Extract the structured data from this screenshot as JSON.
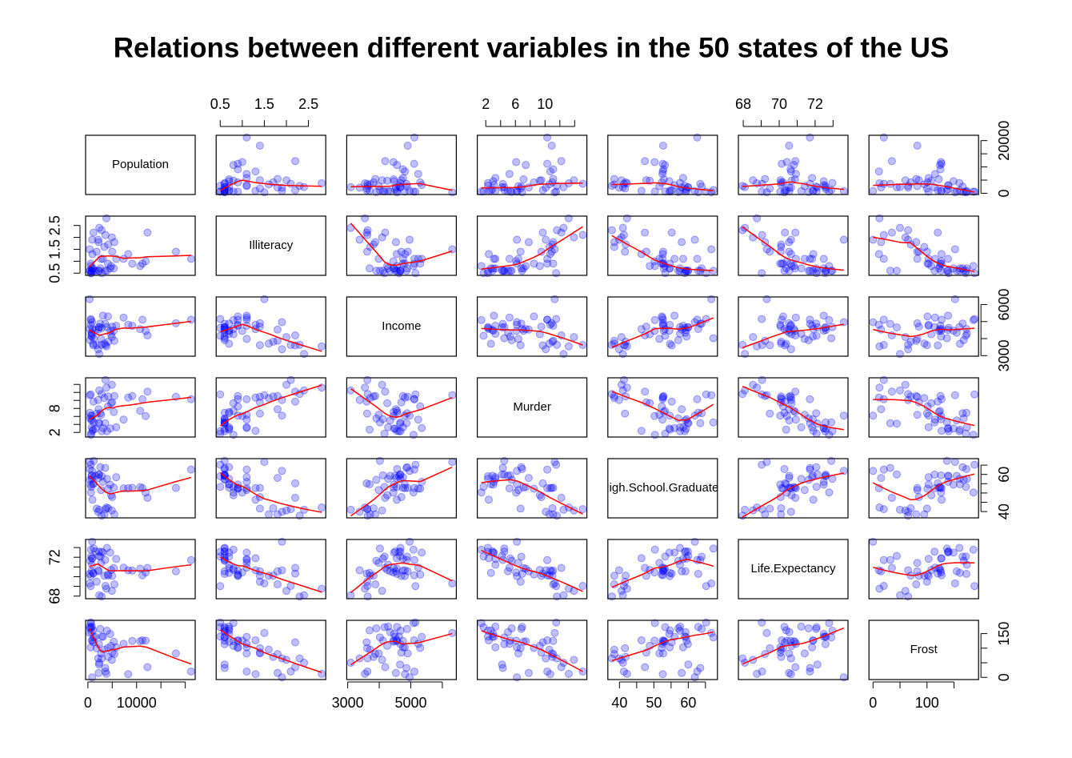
{
  "chart_data": {
    "type": "scatter_matrix",
    "title": "Relations between different variables in the 50 states of the US",
    "point_color": "#0000ff",
    "smoother": "lowess",
    "smoother_color": "#ff0000",
    "variables": [
      {
        "name": "Population",
        "values": [
          3615,
          365,
          2212,
          2110,
          21198,
          2541,
          3100,
          579,
          8277,
          4931,
          868,
          813,
          11197,
          5313,
          2861,
          2280,
          3387,
          3806,
          1058,
          4122,
          5814,
          9111,
          3921,
          2341,
          4767,
          746,
          1544,
          590,
          812,
          7333,
          1144,
          18076,
          5441,
          637,
          10735,
          2715,
          2284,
          11860,
          931,
          2816,
          681,
          4173,
          12237,
          1203,
          472,
          4981,
          3559,
          1799,
          4589,
          376
        ],
        "lim": [
          -468,
          22031
        ],
        "xticks": [
          0,
          {
            "value": 5000
          },
          10000,
          {
            "value": 15000
          },
          {
            "value": 20000
          }
        ],
        "yticks": [
          0,
          {
            "value": 5000
          },
          {
            "value": 10000
          },
          {
            "value": 15000
          },
          20000
        ]
      },
      {
        "name": "Illiteracy",
        "values": [
          2.1,
          1.5,
          1.8,
          1.9,
          1.1,
          0.7,
          1.1,
          0.9,
          1.3,
          2.0,
          1.9,
          0.6,
          0.9,
          0.7,
          0.5,
          0.6,
          1.6,
          2.8,
          0.7,
          0.9,
          1.1,
          0.9,
          0.6,
          2.4,
          0.8,
          0.6,
          0.6,
          0.5,
          0.7,
          1.1,
          2.2,
          1.4,
          1.8,
          0.8,
          0.8,
          1.1,
          0.6,
          1.0,
          1.3,
          2.3,
          0.5,
          1.7,
          2.2,
          0.6,
          0.6,
          1.4,
          0.6,
          1.4,
          0.7,
          0.6
        ],
        "lim": [
          0.408,
          2.892
        ],
        "xticks": [
          0.5,
          {
            "value": 1.0
          },
          1.5,
          {
            "value": 2.0
          },
          2.5
        ],
        "yticks": [
          0.5,
          {
            "value": 1.0
          },
          1.5,
          {
            "value": 2.0
          },
          2.5
        ]
      },
      {
        "name": "Income",
        "values": [
          3624,
          6315,
          4530,
          3378,
          5114,
          4884,
          5348,
          4809,
          4815,
          4091,
          4963,
          4119,
          5107,
          4458,
          4628,
          4669,
          3712,
          3545,
          3694,
          5299,
          4755,
          4751,
          4675,
          3098,
          4254,
          4347,
          4508,
          5149,
          4281,
          5237,
          3601,
          4903,
          3875,
          5087,
          4561,
          3983,
          4660,
          4449,
          4558,
          3635,
          4167,
          3821,
          4188,
          4022,
          3907,
          4701,
          4864,
          3617,
          4468,
          4566
        ],
        "lim": [
          2969,
          6444
        ],
        "xticks": [
          3000,
          {
            "value": 4000
          },
          5000,
          {
            "value": 6000
          }
        ],
        "yticks": [
          3000,
          {
            "value": 4000
          },
          {
            "value": 5000
          },
          6000
        ]
      },
      {
        "name": "Murder",
        "values": [
          15.1,
          11.3,
          7.8,
          10.1,
          10.3,
          6.8,
          3.1,
          6.2,
          10.7,
          13.9,
          6.2,
          5.3,
          10.3,
          7.1,
          2.3,
          4.5,
          10.6,
          13.2,
          2.7,
          8.5,
          3.3,
          11.1,
          2.3,
          12.5,
          9.3,
          5.0,
          2.9,
          11.5,
          3.3,
          5.2,
          9.7,
          10.9,
          11.1,
          1.4,
          7.4,
          6.4,
          4.2,
          6.1,
          2.4,
          11.6,
          1.7,
          11.0,
          12.2,
          4.5,
          5.5,
          9.5,
          4.3,
          6.7,
          3.0,
          6.9
        ],
        "lim": [
          0.852,
          15.648
        ],
        "xticks": [
          2,
          {
            "value": 4
          },
          6,
          {
            "value": 8
          },
          10,
          {
            "value": 12
          },
          {
            "value": 14
          }
        ],
        "yticks": [
          2,
          {
            "value": 4
          },
          {
            "value": 6
          },
          8,
          {
            "value": 10
          },
          {
            "value": 12
          },
          {
            "value": 14
          }
        ]
      },
      {
        "name": "High.School.Graduates",
        "values": [
          41.3,
          66.7,
          58.1,
          39.9,
          62.6,
          63.9,
          56.0,
          54.6,
          52.6,
          40.6,
          61.9,
          59.5,
          52.6,
          52.9,
          59.0,
          59.9,
          38.5,
          42.2,
          54.7,
          52.3,
          58.5,
          52.8,
          57.6,
          41.0,
          48.8,
          59.2,
          59.3,
          65.2,
          57.6,
          52.5,
          55.2,
          52.7,
          38.5,
          50.3,
          53.2,
          51.6,
          60.0,
          50.2,
          46.4,
          37.8,
          53.3,
          41.8,
          47.4,
          67.3,
          57.1,
          47.8,
          63.5,
          41.6,
          54.5,
          62.9
        ],
        "lim": [
          36.62,
          68.48
        ],
        "xticks": [
          40,
          {
            "value": 45
          },
          50,
          {
            "value": 55
          },
          60,
          {
            "value": 65
          }
        ],
        "yticks": [
          40,
          {
            "value": 45
          },
          {
            "value": 50
          },
          {
            "value": 55
          },
          60,
          {
            "value": 65
          }
        ]
      },
      {
        "name": "Life.Expectancy",
        "values": [
          69.05,
          69.31,
          70.55,
          70.66,
          71.71,
          72.06,
          72.48,
          70.06,
          70.66,
          68.54,
          73.6,
          71.87,
          70.14,
          70.88,
          72.56,
          72.58,
          70.1,
          68.76,
          70.39,
          70.22,
          71.83,
          70.63,
          72.96,
          68.09,
          70.69,
          70.56,
          72.6,
          69.03,
          71.23,
          70.93,
          70.32,
          70.55,
          69.21,
          72.78,
          70.82,
          71.42,
          72.13,
          70.43,
          71.9,
          67.96,
          72.08,
          70.11,
          70.9,
          72.9,
          71.64,
          70.08,
          71.72,
          69.48,
          72.48,
          70.29
        ],
        "lim": [
          67.73,
          73.83
        ],
        "xticks": [
          68,
          {
            "value": 69
          },
          70,
          {
            "value": 71
          },
          72,
          {
            "value": 73
          }
        ],
        "yticks": [
          68,
          {
            "value": 69
          },
          {
            "value": 70
          },
          {
            "value": 71
          },
          72,
          {
            "value": 73
          }
        ]
      },
      {
        "name": "Frost",
        "values": [
          20,
          152,
          15,
          65,
          20,
          166,
          139,
          103,
          11,
          60,
          0,
          126,
          127,
          122,
          140,
          114,
          95,
          12,
          161,
          101,
          103,
          125,
          160,
          50,
          108,
          155,
          139,
          188,
          174,
          115,
          120,
          82,
          80,
          186,
          124,
          82,
          44,
          126,
          127,
          65,
          172,
          70,
          35,
          137,
          168,
          85,
          32,
          100,
          149,
          173
        ],
        "lim": [
          -7.52,
          195.52
        ],
        "xticks": [
          0,
          {
            "value": 50
          },
          100,
          {
            "value": 150
          }
        ],
        "yticks": [
          0,
          {
            "value": 50
          },
          {
            "value": 100
          },
          150
        ]
      }
    ]
  }
}
